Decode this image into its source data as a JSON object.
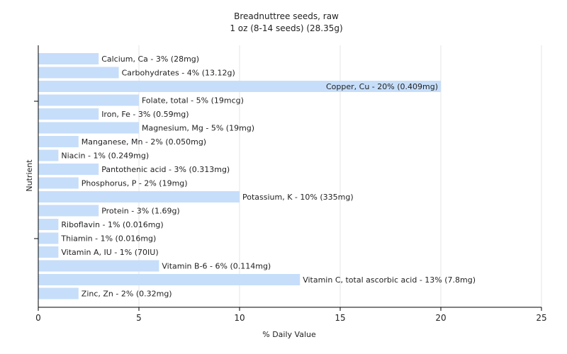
{
  "chart_data": {
    "type": "bar",
    "orientation": "horizontal",
    "title": "Breadnuttree seeds, raw",
    "subtitle": "1 oz (8-14 seeds) (28.35g)",
    "xlabel": "% Daily Value",
    "ylabel": "Nutrient",
    "xlim": [
      0,
      25
    ],
    "xticks": [
      0,
      5,
      10,
      15,
      20,
      25
    ],
    "grid": true,
    "bar_color": "#c6defa",
    "categories": [
      "Calcium, Ca",
      "Carbohydrates",
      "Copper, Cu",
      "Folate, total",
      "Iron, Fe",
      "Magnesium, Mg",
      "Manganese, Mn",
      "Niacin",
      "Pantothenic acid",
      "Phosphorus, P",
      "Potassium, K",
      "Protein",
      "Riboflavin",
      "Thiamin",
      "Vitamin A, IU",
      "Vitamin B-6",
      "Vitamin C, total ascorbic acid",
      "Zinc, Zn"
    ],
    "values": [
      3,
      4,
      20,
      5,
      3,
      5,
      2,
      1,
      3,
      2,
      10,
      3,
      1,
      1,
      1,
      6,
      13,
      2
    ],
    "labels": [
      "Calcium, Ca - 3% (28mg)",
      "Carbohydrates - 4% (13.12g)",
      "Copper, Cu - 20% (0.409mg)",
      "Folate, total - 5% (19mcg)",
      "Iron, Fe - 3% (0.59mg)",
      "Magnesium, Mg - 5% (19mg)",
      "Manganese, Mn - 2% (0.050mg)",
      "Niacin - 1% (0.249mg)",
      "Pantothenic acid - 3% (0.313mg)",
      "Phosphorus, P - 2% (19mg)",
      "Potassium, K - 10% (335mg)",
      "Protein - 3% (1.69g)",
      "Riboflavin - 1% (0.016mg)",
      "Thiamin - 1% (0.016mg)",
      "Vitamin A, IU - 1% (70IU)",
      "Vitamin B-6 - 6% (0.114mg)",
      "Vitamin C, total ascorbic acid - 13% (7.8mg)",
      "Zinc, Zn - 2% (0.32mg)"
    ]
  }
}
